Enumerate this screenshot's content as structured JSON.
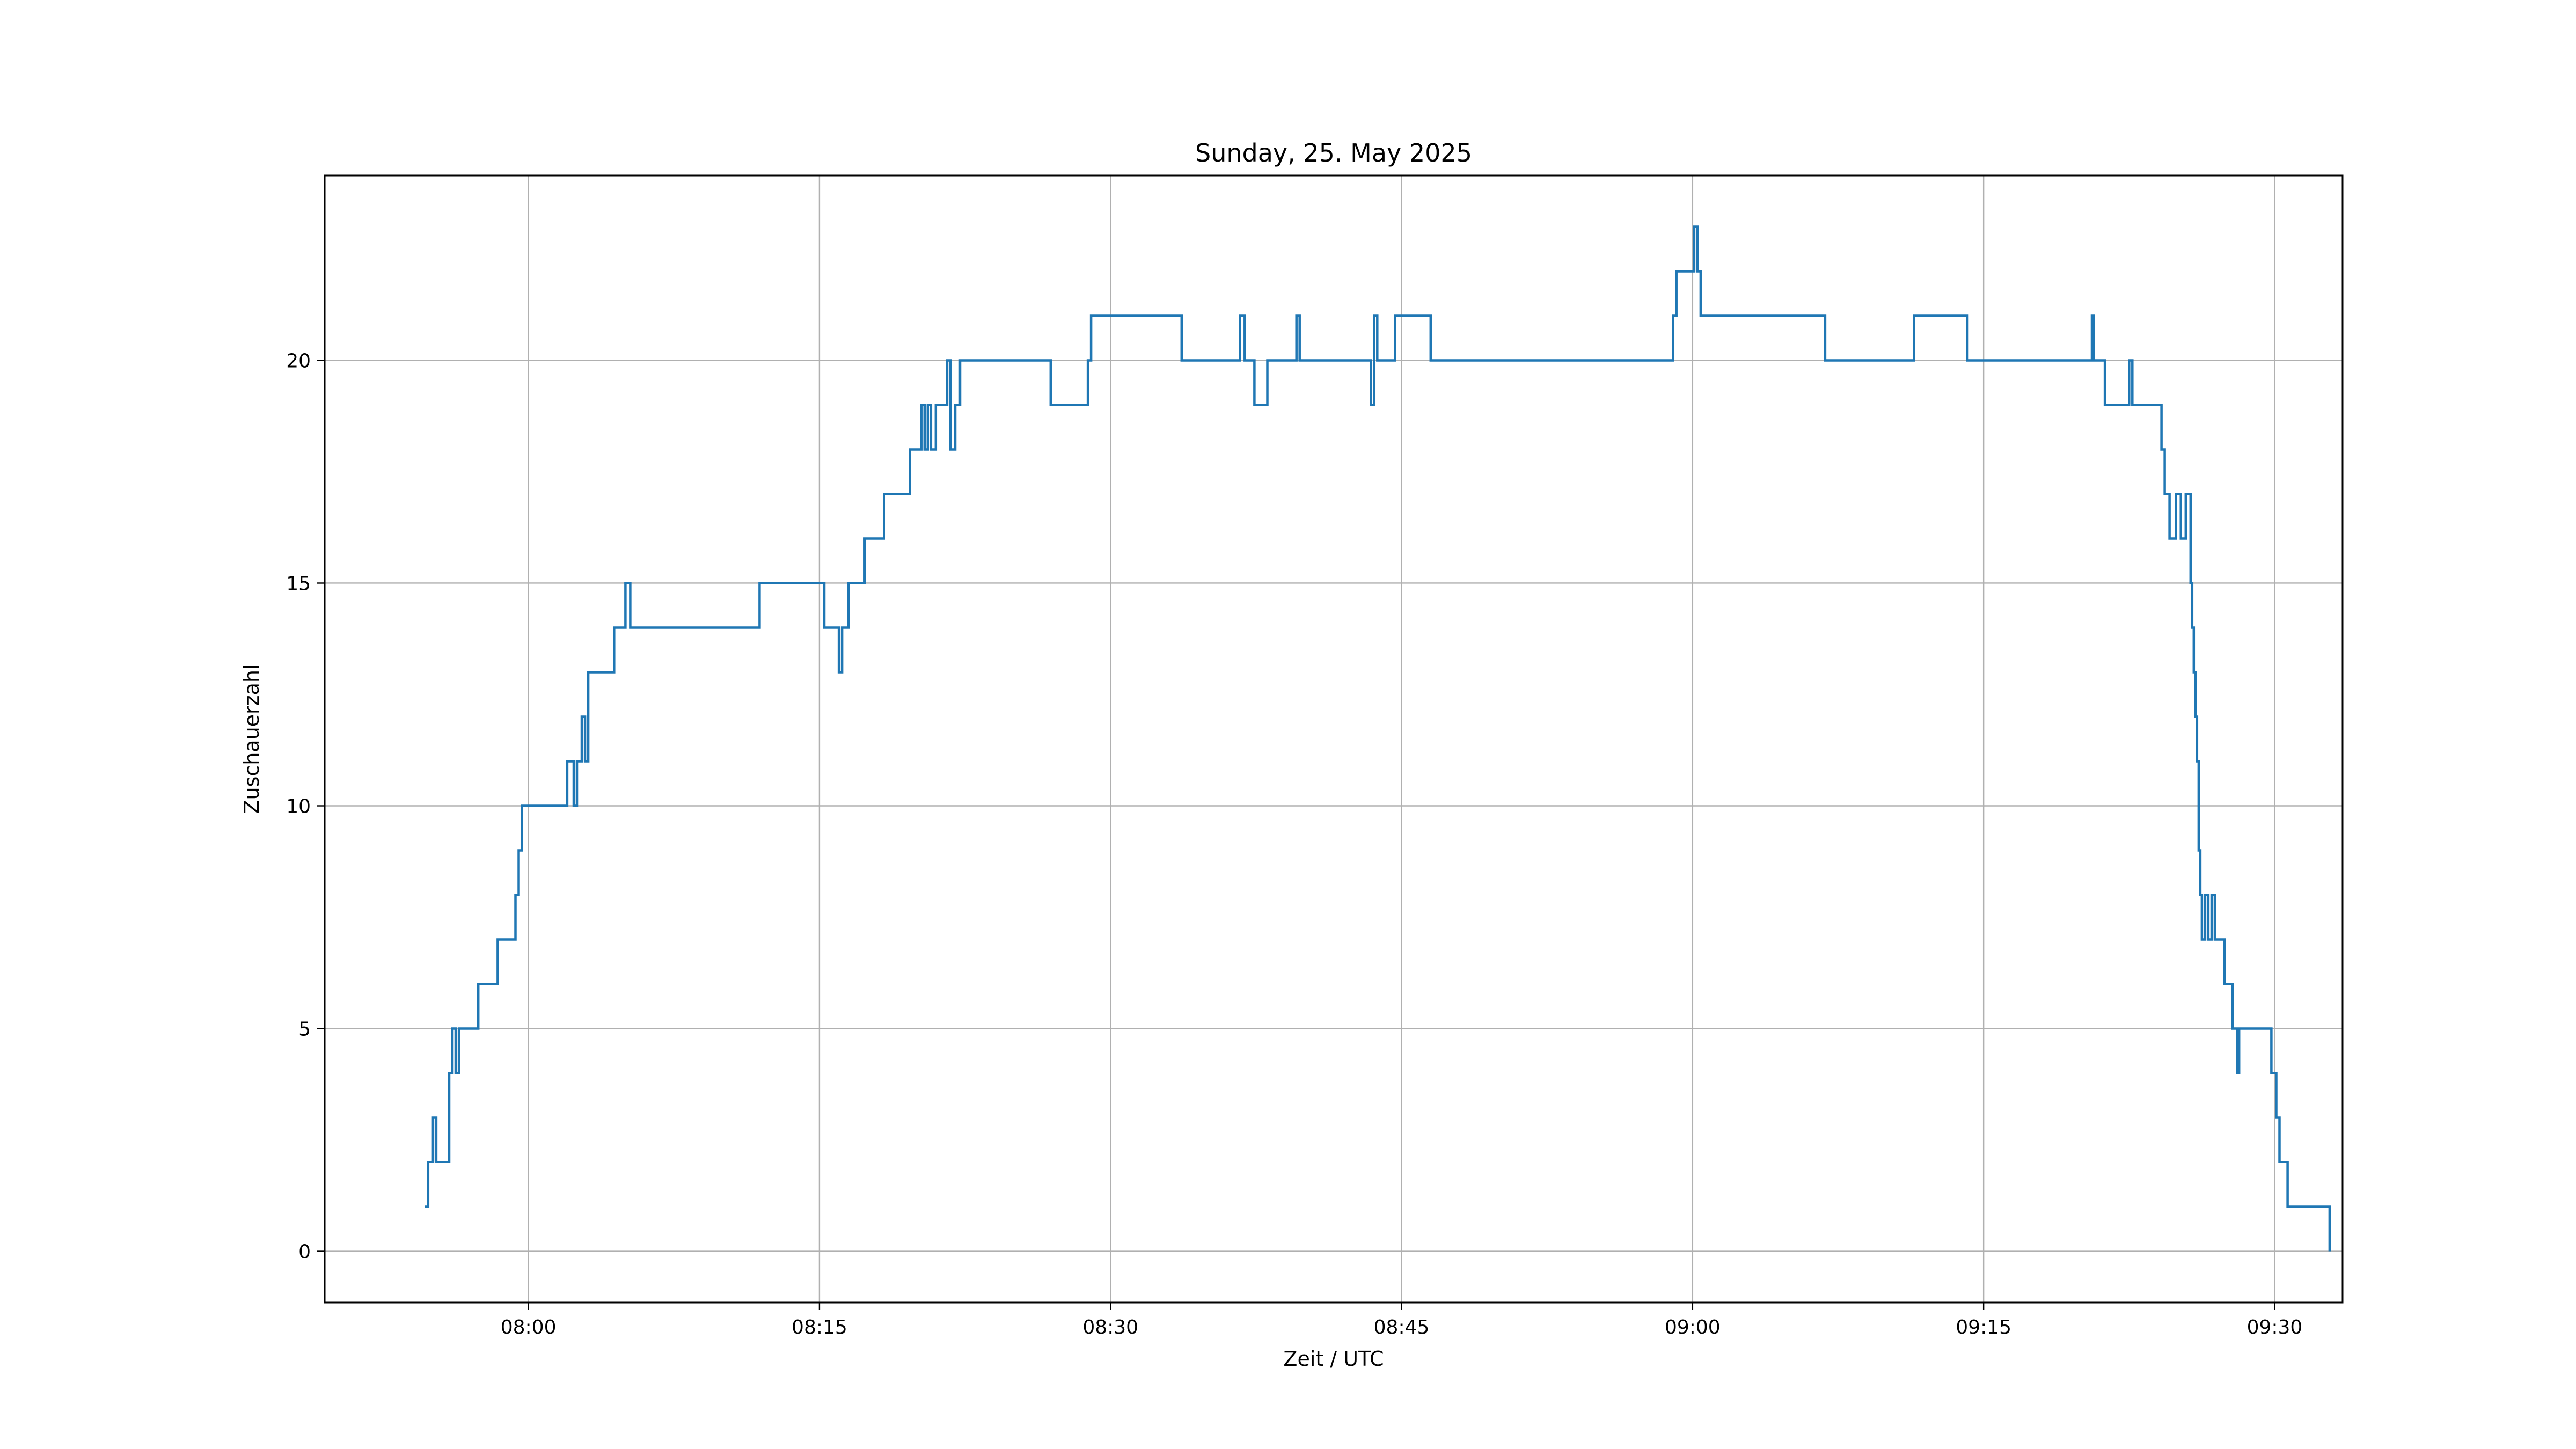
{
  "chart_data": {
    "type": "line",
    "title": "Sunday, 25. May 2025",
    "xlabel": "Zeit / UTC",
    "ylabel": "Zuschauerzahl",
    "x_unit": "time of day (UTC)",
    "xlim": [
      "07:49:30",
      "09:33:30"
    ],
    "ylim": [
      -1.15,
      24.15
    ],
    "xticks": [
      "08:00",
      "08:15",
      "08:30",
      "08:45",
      "09:00",
      "09:15",
      "09:30"
    ],
    "yticks": [
      0,
      5,
      10,
      15,
      20
    ],
    "grid": true,
    "line_style": "step-post",
    "series": [
      {
        "color": "#1f77b4",
        "x": [
          "07:54:40",
          "07:54:50",
          "07:55:05",
          "07:55:15",
          "07:55:55",
          "07:56:05",
          "07:56:15",
          "07:56:25",
          "07:56:40",
          "07:57:25",
          "07:58:25",
          "07:59:20",
          "07:59:30",
          "07:59:40",
          "07:59:50",
          "08:02:00",
          "08:02:20",
          "08:02:30",
          "08:02:45",
          "08:02:55",
          "08:03:05",
          "08:04:25",
          "08:05:00",
          "08:05:15",
          "08:11:55",
          "08:15:15",
          "08:16:00",
          "08:16:10",
          "08:16:30",
          "08:17:20",
          "08:17:35",
          "08:18:20",
          "08:19:40",
          "08:20:15",
          "08:20:25",
          "08:20:35",
          "08:20:45",
          "08:21:00",
          "08:21:15",
          "08:21:35",
          "08:21:45",
          "08:22:00",
          "08:22:15",
          "08:22:40",
          "08:26:55",
          "08:28:50",
          "08:29:00",
          "08:33:40",
          "08:36:40",
          "08:36:55",
          "08:37:25",
          "08:38:05",
          "08:39:35",
          "08:39:45",
          "08:41:00",
          "08:43:25",
          "08:43:35",
          "08:43:45",
          "08:44:40",
          "08:46:30",
          "08:47:40",
          "08:59:00",
          "08:59:10",
          "09:00:05",
          "09:00:15",
          "09:00:25",
          "09:06:50",
          "09:11:25",
          "09:14:10",
          "09:20:35",
          "09:20:40",
          "09:21:15",
          "09:22:30",
          "09:22:40",
          "09:24:10",
          "09:24:20",
          "09:24:35",
          "09:24:55",
          "09:25:10",
          "09:25:25",
          "09:25:40",
          "09:25:45",
          "09:25:50",
          "09:25:55",
          "09:26:00",
          "09:26:05",
          "09:26:10",
          "09:26:15",
          "09:26:25",
          "09:26:35",
          "09:26:45",
          "09:26:55",
          "09:27:25",
          "09:27:50",
          "09:28:05",
          "09:28:10",
          "09:29:50",
          "09:30:05",
          "09:30:15",
          "09:30:40",
          "09:31:05",
          "09:32:50"
        ],
        "y": [
          1,
          2,
          3,
          2,
          4,
          5,
          4,
          5,
          5,
          6,
          7,
          8,
          9,
          10,
          10,
          11,
          10,
          11,
          12,
          11,
          13,
          14,
          15,
          14,
          15,
          14,
          13,
          14,
          15,
          16,
          16,
          17,
          18,
          19,
          18,
          19,
          18,
          19,
          19,
          20,
          18,
          19,
          20,
          20,
          19,
          20,
          21,
          20,
          21,
          20,
          19,
          20,
          21,
          20,
          20,
          19,
          21,
          20,
          21,
          20,
          20,
          21,
          22,
          23,
          22,
          21,
          20,
          21,
          20,
          21,
          20,
          19,
          20,
          19,
          18,
          17,
          16,
          17,
          16,
          17,
          15,
          14,
          13,
          12,
          11,
          9,
          8,
          7,
          8,
          7,
          8,
          7,
          6,
          5,
          4,
          5,
          4,
          3,
          2,
          1,
          1,
          0
        ]
      }
    ]
  }
}
